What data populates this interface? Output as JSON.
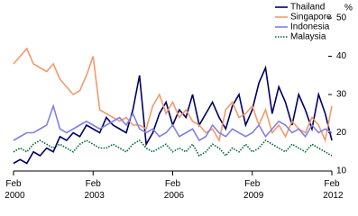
{
  "chart_data": {
    "type": "line",
    "y_label": "%",
    "x": [
      2000.08,
      2000.33,
      2000.58,
      2000.83,
      2001.08,
      2001.33,
      2001.58,
      2001.83,
      2002.08,
      2002.33,
      2002.58,
      2002.83,
      2003.08,
      2003.33,
      2003.58,
      2003.83,
      2004.08,
      2004.33,
      2004.58,
      2004.83,
      2005.08,
      2005.33,
      2005.58,
      2005.83,
      2006.08,
      2006.33,
      2006.58,
      2006.83,
      2007.08,
      2007.33,
      2007.58,
      2007.83,
      2008.08,
      2008.33,
      2008.58,
      2008.83,
      2009.08,
      2009.33,
      2009.58,
      2009.83,
      2010.08,
      2010.33,
      2010.58,
      2010.83,
      2011.08,
      2011.33,
      2011.58,
      2011.83,
      2012.08
    ],
    "series": [
      {
        "name": "Thailand",
        "color": "#000066",
        "style": "solid",
        "values": [
          12,
          13,
          12,
          15,
          14,
          16,
          15,
          19,
          18,
          20,
          19,
          22,
          21,
          20,
          24,
          22,
          21,
          20,
          26,
          35,
          17,
          20,
          25,
          28,
          22,
          26,
          24,
          30,
          22,
          25,
          28,
          24,
          21,
          27,
          30,
          22,
          26,
          33,
          37,
          25,
          32,
          28,
          22,
          30,
          26,
          21,
          30,
          25,
          18
        ]
      },
      {
        "name": "Singapore",
        "color": "#f39a6c",
        "style": "solid",
        "values": [
          38,
          40,
          42,
          38,
          37,
          36,
          38,
          34,
          32,
          30,
          31,
          35,
          40,
          26,
          25,
          24,
          23,
          24,
          22,
          22,
          21,
          27,
          30,
          25,
          28,
          24,
          26,
          23,
          22,
          20,
          21,
          18,
          26,
          28,
          24,
          25,
          27,
          22,
          26,
          20,
          22,
          19,
          23,
          21,
          20,
          24,
          22,
          18,
          27
        ]
      },
      {
        "name": "Indonesia",
        "color": "#8080e6",
        "style": "solid",
        "values": [
          18,
          19,
          20,
          20,
          21,
          22,
          27,
          21,
          20,
          21,
          22,
          23,
          22,
          21,
          22,
          23,
          24,
          22,
          25,
          21,
          20,
          21,
          19,
          20,
          22,
          19,
          20,
          21,
          18,
          19,
          22,
          20,
          19,
          21,
          20,
          19,
          20,
          22,
          19,
          21,
          23,
          22,
          20,
          21,
          19,
          22,
          20,
          21,
          20
        ]
      },
      {
        "name": "Malaysia",
        "color": "#006633",
        "style": "dotted",
        "values": [
          15,
          16,
          15,
          17,
          18,
          17,
          16,
          17,
          16,
          15,
          17,
          18,
          17,
          16,
          16,
          17,
          16,
          15,
          17,
          18,
          16,
          15,
          16,
          17,
          15,
          16,
          15,
          17,
          14,
          15,
          17,
          16,
          14,
          16,
          15,
          17,
          15,
          16,
          18,
          17,
          16,
          15,
          17,
          16,
          15,
          17,
          16,
          15,
          14
        ]
      }
    ],
    "xlim": [
      2000.08,
      2012.08
    ],
    "xticks": [
      {
        "value": 2000.08,
        "label": "Feb 2000"
      },
      {
        "value": 2003.08,
        "label": "Feb 2003"
      },
      {
        "value": 2006.08,
        "label": "Feb 2006"
      },
      {
        "value": 2009.08,
        "label": "Feb 2009"
      },
      {
        "value": 2012.08,
        "label": "Feb 2012"
      }
    ],
    "ylim": [
      10,
      50
    ],
    "yticks": [
      10,
      20,
      30,
      40,
      50
    ],
    "legend": "top-right"
  }
}
